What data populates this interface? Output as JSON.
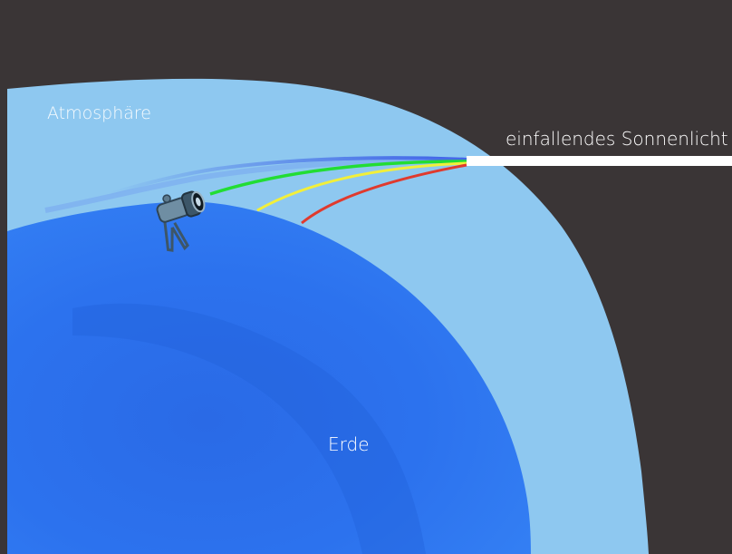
{
  "labels": {
    "atmosphere": "Atmosphäre",
    "sunlight": "einfallendes Sonnenlicht",
    "earth": "Erde"
  },
  "colors": {
    "space": "#3a3536",
    "atmosphere": "#8ec8f0",
    "earth_light": "#2f78f0",
    "earth_dark": "#1a55c8",
    "sunlight_beam": "#ffffff",
    "ray_blue": "#3b5fe6",
    "ray_green": "#22dd33",
    "ray_yellow": "#f2ef3a",
    "ray_red": "#e03a2e",
    "telescope": "#4a6a80"
  },
  "rays": [
    "blue",
    "green",
    "yellow",
    "red"
  ],
  "icon": "telescope-icon"
}
